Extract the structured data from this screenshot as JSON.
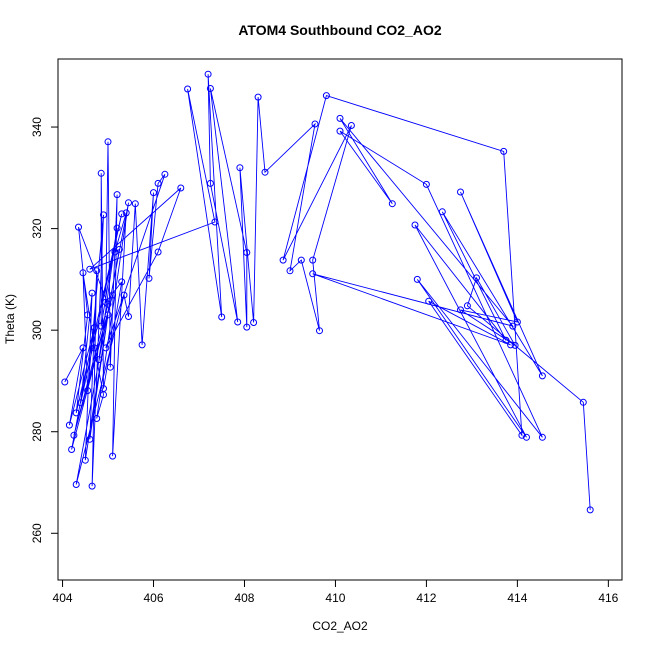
{
  "chart_data": {
    "type": "line",
    "title": "ATOM4 Southbound CO2_AO2",
    "xlabel": "CO2_AO2",
    "ylabel": "Theta (K)",
    "xlim": [
      403.9,
      416.3
    ],
    "ylim": [
      250.8,
      353.4
    ],
    "x_ticks": [
      404,
      406,
      408,
      410,
      412,
      414,
      416
    ],
    "y_ticks": [
      260,
      280,
      300,
      320,
      340
    ],
    "grid": false,
    "line_color": "#0000ff",
    "marker": "open-circle",
    "series": [
      {
        "points": [
          [
            404.05,
            289.8
          ],
          [
            404.45,
            296.5
          ],
          [
            404.15,
            281.3
          ],
          [
            404.7,
            300.5
          ],
          [
            404.2,
            276.5
          ],
          [
            405.1,
            306.9
          ],
          [
            404.25,
            279.3
          ],
          [
            405.0,
            305.1
          ],
          [
            404.35,
            320.3
          ],
          [
            404.55,
            303.0
          ],
          [
            404.3,
            283.7
          ],
          [
            405.3,
            322.9
          ],
          [
            404.4,
            285.7
          ],
          [
            404.65,
            307.3
          ],
          [
            404.5,
            274.4
          ],
          [
            405.0,
            303.0
          ],
          [
            404.6,
            278.5
          ],
          [
            404.75,
            311.7
          ],
          [
            404.65,
            269.3
          ],
          [
            404.9,
            322.7
          ],
          [
            404.55,
            288.1
          ],
          [
            404.45,
            311.3
          ],
          [
            404.7,
            296.5
          ],
          [
            404.9,
            287.3
          ],
          [
            404.75,
            282.6
          ],
          [
            405.45,
            325.1
          ],
          [
            404.8,
            294.2
          ],
          [
            405.2,
            320.1
          ],
          [
            404.85,
            300.8
          ],
          [
            404.85,
            330.9
          ],
          [
            404.9,
            288.5
          ],
          [
            405.3,
            309.5
          ],
          [
            404.95,
            305.5
          ],
          [
            405.0,
            337.1
          ],
          [
            405.05,
            292.7
          ],
          [
            405.2,
            326.7
          ],
          [
            405.1,
            275.2
          ],
          [
            405.4,
            323.1
          ],
          [
            405.15,
            315.4
          ],
          [
            405.25,
            315.9
          ],
          [
            404.3,
            269.6
          ],
          [
            405.35,
            306.9
          ],
          [
            405.45,
            302.7
          ],
          [
            405.6,
            324.9
          ],
          [
            405.75,
            297.1
          ],
          [
            406.0,
            327.1
          ],
          [
            405.9,
            310.2
          ],
          [
            406.1,
            328.9
          ],
          [
            406.25,
            330.7
          ],
          [
            404.95,
            296.5
          ],
          [
            406.1,
            315.4
          ],
          [
            406.6,
            328.0
          ],
          [
            404.6,
            312.0
          ],
          [
            407.35,
            321.3
          ],
          [
            406.75,
            347.5
          ],
          [
            407.5,
            302.6
          ],
          [
            407.2,
            350.4
          ],
          [
            407.25,
            328.9
          ],
          [
            407.85,
            301.6
          ],
          [
            407.25,
            347.6
          ],
          [
            408.05,
            315.3
          ],
          [
            408.05,
            300.6
          ],
          [
            407.9,
            332.0
          ],
          [
            408.2,
            301.5
          ],
          [
            408.3,
            345.9
          ],
          [
            408.45,
            331.1
          ],
          [
            409.55,
            340.6
          ],
          [
            409.0,
            311.7
          ],
          [
            409.25,
            313.8
          ],
          [
            409.65,
            299.9
          ],
          [
            409.5,
            313.8
          ],
          [
            410.35,
            340.3
          ],
          [
            408.85,
            313.8
          ],
          [
            409.8,
            346.2
          ],
          [
            413.7,
            335.2
          ],
          [
            414.1,
            279.3
          ],
          [
            412.05,
            305.7
          ],
          [
            413.85,
            297.1
          ],
          [
            409.5,
            311.1
          ],
          [
            413.9,
            300.8
          ],
          [
            410.1,
            341.7
          ],
          [
            411.25,
            324.9
          ],
          [
            410.1,
            339.2
          ],
          [
            412.0,
            328.7
          ],
          [
            414.55,
            278.9
          ],
          [
            411.8,
            310.0
          ],
          [
            414.2,
            278.9
          ],
          [
            411.75,
            320.7
          ],
          [
            413.75,
            298.0
          ],
          [
            412.35,
            323.3
          ],
          [
            414.55,
            291.0
          ],
          [
            412.75,
            327.2
          ],
          [
            414.0,
            301.6
          ],
          [
            412.75,
            304.0
          ],
          [
            413.95,
            297.0
          ],
          [
            413.1,
            310.3
          ],
          [
            412.9,
            304.8
          ],
          [
            415.45,
            285.8
          ],
          [
            415.6,
            264.6
          ]
        ]
      }
    ]
  }
}
